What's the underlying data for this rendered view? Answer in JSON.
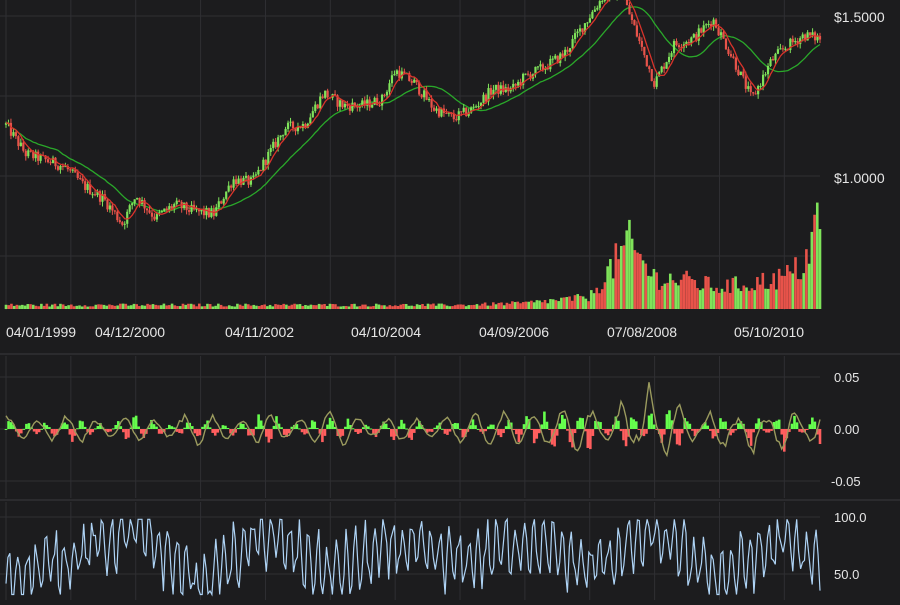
{
  "colors": {
    "background": "#1c1c1e",
    "candle_up": "#7fe35a",
    "candle_down": "#e8534a",
    "ma_fast": "#d9332b",
    "ma_slow": "#2aa82a",
    "macd_hist_up": "#66ff4d",
    "macd_hist_down": "#ff5e5e",
    "macd_signal": "#9a9a5e",
    "rsi_line": "#aed3f5"
  },
  "chart_data": [
    {
      "type": "candlestick",
      "role": "price",
      "x_ticks": [
        "04/01/1999",
        "04/12/2000",
        "04/11/2002",
        "04/10/2004",
        "04/09/2006",
        "07/08/2008",
        "05/10/2010"
      ],
      "y_ticks": [
        "$1.5000",
        "$1.0000"
      ],
      "ylim": [
        0.55,
        1.68
      ],
      "series": [
        {
          "x": [
            1999.0,
            1999.3,
            1999.6,
            1999.9,
            2000.2,
            2000.5,
            2000.8,
            2001.0,
            2001.3,
            2001.6,
            2001.9,
            2002.2,
            2002.5,
            2002.8,
            2003.0,
            2003.3,
            2003.6,
            2003.9,
            2004.2,
            2004.5,
            2004.8,
            2005.0,
            2005.3,
            2005.6,
            2005.9,
            2006.2,
            2006.5,
            2006.8,
            2007.0,
            2007.3,
            2007.6,
            2007.9,
            2008.2,
            2008.5,
            2008.8,
            2009.0,
            2009.3,
            2009.6,
            2009.9,
            2010.2,
            2010.5,
            2010.8,
            2011.0,
            2011.3,
            2011.55
          ],
          "values": [
            1.16,
            1.07,
            1.05,
            1.03,
            0.97,
            0.93,
            0.85,
            0.94,
            0.87,
            0.91,
            0.89,
            0.88,
            0.99,
            0.98,
            1.05,
            1.15,
            1.16,
            1.26,
            1.22,
            1.22,
            1.24,
            1.33,
            1.29,
            1.21,
            1.18,
            1.21,
            1.27,
            1.27,
            1.31,
            1.34,
            1.38,
            1.47,
            1.56,
            1.57,
            1.4,
            1.29,
            1.41,
            1.43,
            1.49,
            1.37,
            1.24,
            1.36,
            1.4,
            1.44,
            1.43
          ]
        }
      ]
    },
    {
      "type": "bar",
      "role": "volume",
      "x": [
        1999.0,
        2000.0,
        2001.0,
        2002.0,
        2003.0,
        2004.0,
        2005.0,
        2006.0,
        2007.0,
        2008.0,
        2008.6,
        2009.0,
        2009.5,
        2010.0,
        2010.5,
        2011.0,
        2011.3,
        2011.5
      ],
      "values": [
        0.02,
        0.02,
        0.02,
        0.02,
        0.02,
        0.02,
        0.02,
        0.02,
        0.03,
        0.06,
        0.33,
        0.16,
        0.14,
        0.11,
        0.13,
        0.16,
        0.22,
        0.43
      ]
    },
    {
      "type": "bar",
      "role": "macd",
      "y_ticks": [
        "0.05",
        "0.00",
        "-0.05"
      ],
      "ylim": [
        -0.05,
        0.05
      ],
      "x": [
        1999.0,
        2000.0,
        2001.0,
        2002.0,
        2003.0,
        2004.0,
        2005.0,
        2006.0,
        2007.0,
        2008.0,
        2008.6,
        2008.9,
        2009.2,
        2010.0,
        2010.5,
        2011.0,
        2011.5
      ],
      "values": [
        0.005,
        -0.006,
        0.006,
        -0.005,
        0.009,
        -0.008,
        0.007,
        -0.006,
        0.008,
        0.013,
        -0.02,
        0.016,
        -0.018,
        0.01,
        -0.012,
        0.014,
        -0.01
      ],
      "signal": [
        -0.01,
        0.012,
        -0.01,
        0.015,
        -0.012,
        0.017,
        -0.01,
        0.01,
        0.015,
        0.02,
        -0.04,
        0.055,
        -0.035,
        0.025,
        -0.025,
        0.03,
        -0.015
      ]
    },
    {
      "type": "line",
      "role": "rsi",
      "y_ticks": [
        "100.0",
        "50.0"
      ],
      "ylim": [
        30,
        102
      ],
      "x": [
        1999.0,
        2000.0,
        2001.0,
        2002.0,
        2003.0,
        2004.0,
        2005.0,
        2006.0,
        2007.0,
        2008.0,
        2009.0,
        2010.0,
        2011.0,
        2011.5
      ],
      "values": [
        45,
        65,
        90,
        40,
        85,
        50,
        75,
        60,
        80,
        55,
        85,
        45,
        80,
        60
      ]
    }
  ]
}
